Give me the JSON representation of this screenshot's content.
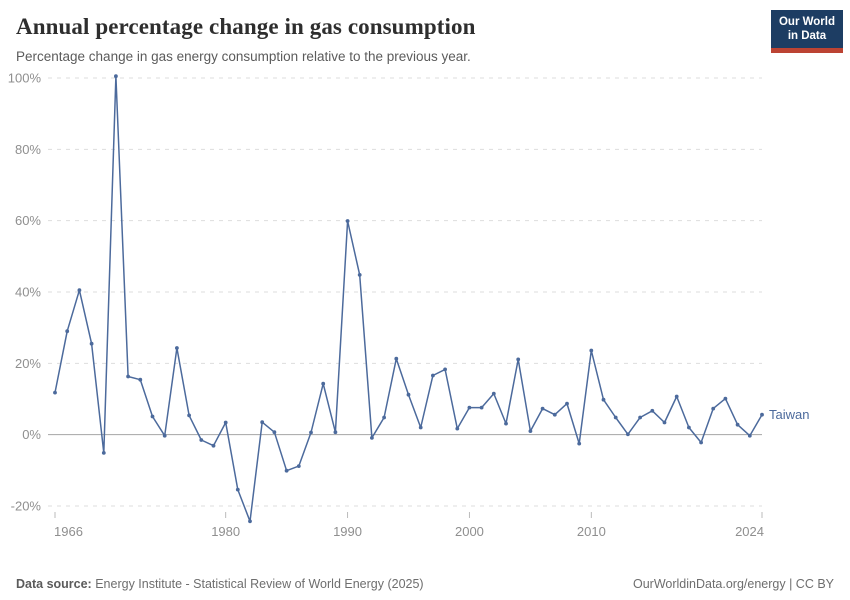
{
  "header": {
    "title": "Annual percentage change in gas consumption",
    "subtitle": "Percentage change in gas energy consumption relative to the previous year.",
    "logo_line1": "Our World",
    "logo_line2": "in Data"
  },
  "colors": {
    "series": "#4C6A9C",
    "logo_navy": "#1D3D63",
    "logo_red": "#BC4333",
    "gridline": "#DDDDDD",
    "zero_line": "#A5A5A5",
    "axis_text": "#8F8F8F",
    "tick_mark": "#BBBBBB"
  },
  "chart_data": {
    "type": "line",
    "title": "Annual percentage change in gas consumption",
    "xlabel": "",
    "ylabel": "",
    "grid": "horizontal dashed, solid zero line",
    "legend_position": "end-of-line label",
    "x_ticks": [
      1966,
      1980,
      1990,
      2000,
      2010,
      2024
    ],
    "y_ticks_percent": [
      -20,
      0,
      20,
      40,
      60,
      80,
      100
    ],
    "y_tick_suffix": "%",
    "xlim": [
      1965.5,
      2024.5
    ],
    "ylim": [
      -27,
      103
    ],
    "series": [
      {
        "name": "Taiwan",
        "color": "#4C6A9C",
        "years": [
          1966,
          1967,
          1968,
          1969,
          1970,
          1971,
          1972,
          1973,
          1974,
          1975,
          1976,
          1977,
          1978,
          1979,
          1980,
          1981,
          1982,
          1983,
          1984,
          1985,
          1986,
          1987,
          1988,
          1989,
          1990,
          1991,
          1992,
          1993,
          1994,
          1995,
          1996,
          1997,
          1998,
          1999,
          2000,
          2001,
          2002,
          2003,
          2004,
          2005,
          2006,
          2007,
          2008,
          2009,
          2010,
          2011,
          2012,
          2013,
          2014,
          2015,
          2016,
          2017,
          2018,
          2019,
          2020,
          2021,
          2022,
          2023,
          2024
        ],
        "values_percent": [
          11.8,
          29.0,
          40.5,
          25.5,
          -5.1,
          100.5,
          16.3,
          15.4,
          5.1,
          -0.3,
          24.3,
          5.4,
          -1.5,
          -3.1,
          3.4,
          -15.4,
          -24.3,
          3.5,
          0.7,
          -10.1,
          -8.8,
          0.6,
          14.3,
          0.7,
          59.9,
          44.8,
          -0.9,
          4.8,
          21.3,
          11.2,
          2.0,
          16.6,
          18.3,
          1.7,
          7.6,
          7.6,
          11.5,
          3.1,
          21.1,
          1.0,
          7.3,
          5.6,
          8.7,
          -2.5,
          23.6,
          9.8,
          4.8,
          0.1,
          4.8,
          6.7,
          3.4,
          10.7,
          2.0,
          -2.2,
          7.3,
          10.1,
          2.8,
          -0.3,
          5.6
        ]
      }
    ]
  },
  "footer": {
    "datasource_label": "Data source:",
    "datasource_text": " Energy Institute - Statistical Review of World Energy (2025)",
    "license_text": "OurWorldinData.org/energy | CC BY"
  }
}
